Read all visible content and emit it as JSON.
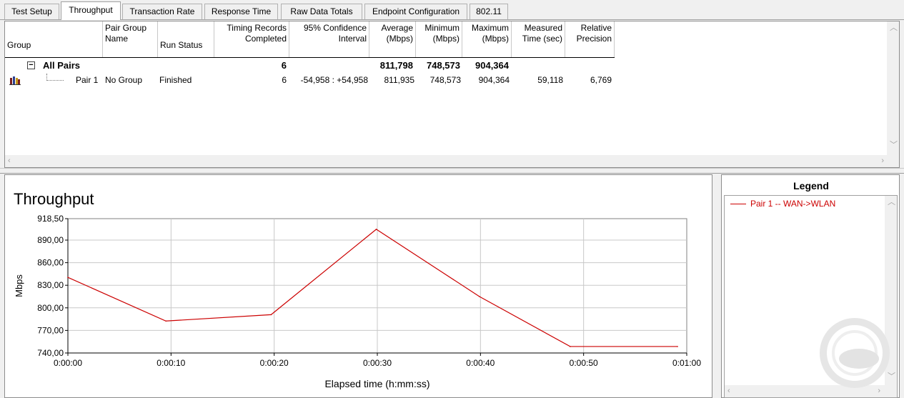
{
  "tabs": [
    {
      "label": "Test Setup",
      "active": false
    },
    {
      "label": "Throughput",
      "active": true
    },
    {
      "label": "Transaction Rate",
      "active": false
    },
    {
      "label": "Response Time",
      "active": false
    },
    {
      "label": "Raw Data Totals",
      "active": false
    },
    {
      "label": "Endpoint Configuration",
      "active": false
    },
    {
      "label": "802.11",
      "active": false
    }
  ],
  "table": {
    "headers": {
      "group": "Group",
      "pair_group_name": [
        "Pair Group",
        "Name"
      ],
      "run_status": "Run Status",
      "timing_records": [
        "Timing Records",
        "Completed"
      ],
      "confidence": [
        "95% Confidence",
        "Interval"
      ],
      "average": [
        "Average",
        "(Mbps)"
      ],
      "minimum": [
        "Minimum",
        "(Mbps)"
      ],
      "maximum": [
        "Maximum",
        "(Mbps)"
      ],
      "measured_time": [
        "Measured",
        "Time (sec)"
      ],
      "relative_precision": [
        "Relative",
        "Precision"
      ]
    },
    "all_pairs": {
      "expand_glyph": "−",
      "label": "All Pairs",
      "timing_records": "6",
      "average": "811,798",
      "minimum": "748,573",
      "maximum": "904,364"
    },
    "pair_row": {
      "icon": "pair-endpoint-icon",
      "label": "Pair 1",
      "pair_group_name": "No Group",
      "run_status": "Finished",
      "timing_records": "6",
      "confidence": "-54,958 : +54,958",
      "average": "811,935",
      "minimum": "748,573",
      "maximum": "904,364",
      "measured_time": "59,118",
      "relative_precision": "6,769"
    }
  },
  "legend": {
    "title": "Legend",
    "items": [
      {
        "label": "Pair 1 -- WAN->WLAN",
        "color": "#cc0000"
      }
    ]
  },
  "chart_data": {
    "type": "line",
    "title": "Throughput",
    "xlabel": "Elapsed time (h:mm:ss)",
    "ylabel": "Mbps",
    "ylim": [
      740,
      918.5
    ],
    "xlim": [
      0,
      60
    ],
    "y_ticks": [
      "740,00",
      "770,00",
      "800,00",
      "830,00",
      "860,00",
      "890,00",
      "918,50"
    ],
    "y_tick_values": [
      740,
      770,
      800,
      830,
      860,
      890,
      918.5
    ],
    "x_ticks": [
      "0:00:00",
      "0:00:10",
      "0:00:20",
      "0:00:30",
      "0:00:40",
      "0:00:50",
      "0:01:00"
    ],
    "x_tick_values": [
      0,
      10,
      20,
      30,
      40,
      50,
      60
    ],
    "grid": true,
    "series": [
      {
        "name": "Pair 1 -- WAN->WLAN",
        "color": "#cc0000",
        "x": [
          0,
          9.5,
          19.7,
          29.9,
          39.9,
          48.7,
          59.1
        ],
        "y": [
          840.5,
          782.5,
          790.9,
          904.4,
          815,
          748.6,
          748.6
        ]
      }
    ]
  },
  "colors": {
    "accent_line": "#cc0000",
    "grid": "#c8c8c8"
  }
}
